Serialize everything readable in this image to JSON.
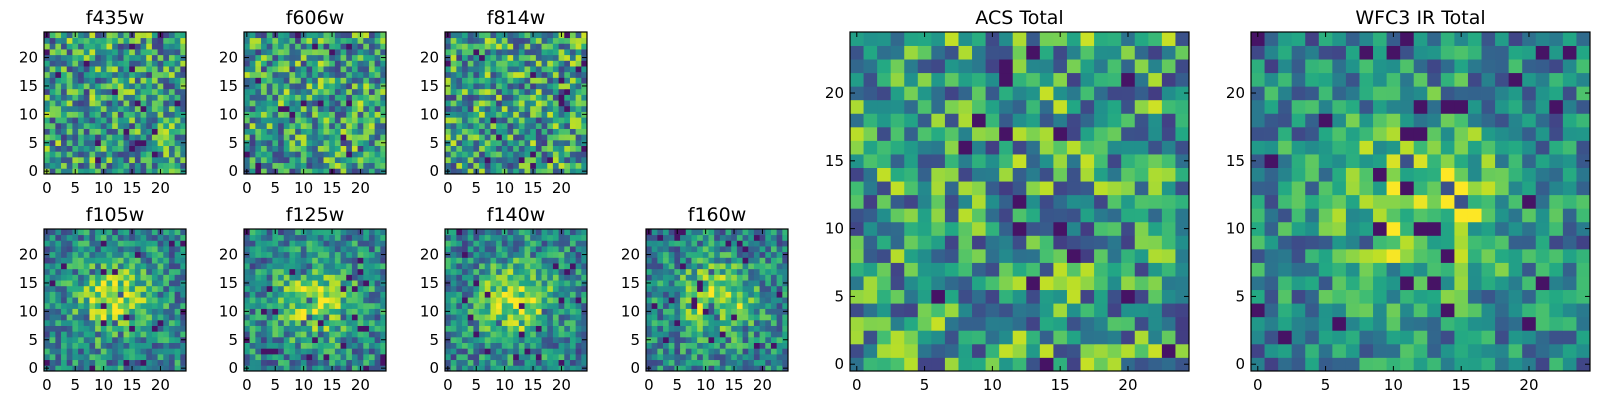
{
  "chart_data": [
    {
      "type": "heatmap",
      "title": "f435w",
      "size": "small",
      "cols": 25,
      "rows": 25,
      "xlim": [
        0,
        24
      ],
      "ylim": [
        0,
        24
      ],
      "xticks": [
        0,
        5,
        10,
        15,
        20
      ],
      "yticks": [
        0,
        5,
        10,
        15,
        20
      ],
      "xtick_labels": [
        "0",
        "5",
        "10",
        "15",
        "20"
      ],
      "ytick_labels": [
        "0",
        "5",
        "10",
        "15",
        "20"
      ],
      "pattern": "noise",
      "seed": 11
    },
    {
      "type": "heatmap",
      "title": "f606w",
      "size": "small",
      "cols": 25,
      "rows": 25,
      "xlim": [
        0,
        24
      ],
      "ylim": [
        0,
        24
      ],
      "xticks": [
        0,
        5,
        10,
        15,
        20
      ],
      "yticks": [
        0,
        5,
        10,
        15,
        20
      ],
      "xtick_labels": [
        "0",
        "5",
        "10",
        "15",
        "20"
      ],
      "ytick_labels": [
        "0",
        "5",
        "10",
        "15",
        "20"
      ],
      "pattern": "noise",
      "seed": 22
    },
    {
      "type": "heatmap",
      "title": "f814w",
      "size": "small",
      "cols": 25,
      "rows": 25,
      "xlim": [
        0,
        24
      ],
      "ylim": [
        0,
        24
      ],
      "xticks": [
        0,
        5,
        10,
        15,
        20
      ],
      "yticks": [
        0,
        5,
        10,
        15,
        20
      ],
      "xtick_labels": [
        "0",
        "5",
        "10",
        "15",
        "20"
      ],
      "ytick_labels": [
        "0",
        "5",
        "10",
        "15",
        "20"
      ],
      "pattern": "noise",
      "seed": 33
    },
    {
      "type": "heatmap",
      "title": "f105w",
      "size": "small",
      "cols": 25,
      "rows": 25,
      "xlim": [
        0,
        24
      ],
      "ylim": [
        0,
        24
      ],
      "xticks": [
        0,
        5,
        10,
        15,
        20
      ],
      "yticks": [
        0,
        5,
        10,
        15,
        20
      ],
      "xtick_labels": [
        "0",
        "5",
        "10",
        "15",
        "20"
      ],
      "ytick_labels": [
        "0",
        "5",
        "10",
        "15",
        "20"
      ],
      "pattern": "source",
      "seed": 44
    },
    {
      "type": "heatmap",
      "title": "f125w",
      "size": "small",
      "cols": 25,
      "rows": 25,
      "xlim": [
        0,
        24
      ],
      "ylim": [
        0,
        24
      ],
      "xticks": [
        0,
        5,
        10,
        15,
        20
      ],
      "yticks": [
        0,
        5,
        10,
        15,
        20
      ],
      "xtick_labels": [
        "0",
        "5",
        "10",
        "15",
        "20"
      ],
      "ytick_labels": [
        "0",
        "5",
        "10",
        "15",
        "20"
      ],
      "pattern": "source",
      "seed": 55
    },
    {
      "type": "heatmap",
      "title": "f140w",
      "size": "small",
      "cols": 25,
      "rows": 25,
      "xlim": [
        0,
        24
      ],
      "ylim": [
        0,
        24
      ],
      "xticks": [
        0,
        5,
        10,
        15,
        20
      ],
      "yticks": [
        0,
        5,
        10,
        15,
        20
      ],
      "xtick_labels": [
        "0",
        "5",
        "10",
        "15",
        "20"
      ],
      "ytick_labels": [
        "0",
        "5",
        "10",
        "15",
        "20"
      ],
      "pattern": "source",
      "seed": 66
    },
    {
      "type": "heatmap",
      "title": "f160w",
      "size": "small",
      "cols": 25,
      "rows": 25,
      "xlim": [
        0,
        24
      ],
      "ylim": [
        0,
        24
      ],
      "xticks": [
        0,
        5,
        10,
        15,
        20
      ],
      "yticks": [
        0,
        5,
        10,
        15,
        20
      ],
      "xtick_labels": [
        "0",
        "5",
        "10",
        "15",
        "20"
      ],
      "ytick_labels": [
        "0",
        "5",
        "10",
        "15",
        "20"
      ],
      "pattern": "source",
      "seed": 77
    },
    {
      "type": "heatmap",
      "title": "ACS Total",
      "size": "large",
      "cols": 25,
      "rows": 25,
      "xlim": [
        0,
        24
      ],
      "ylim": [
        0,
        24
      ],
      "xticks": [
        0,
        5,
        10,
        15,
        20
      ],
      "yticks": [
        0,
        5,
        10,
        15,
        20
      ],
      "xtick_labels": [
        "0",
        "5",
        "10",
        "15",
        "20"
      ],
      "ytick_labels": [
        "0",
        "5",
        "10",
        "15",
        "20"
      ],
      "pattern": "noise",
      "seed": 88
    },
    {
      "type": "heatmap",
      "title": "WFC3 IR Total",
      "size": "large",
      "cols": 25,
      "rows": 25,
      "xlim": [
        0,
        24
      ],
      "ylim": [
        0,
        24
      ],
      "xticks": [
        0,
        5,
        10,
        15,
        20
      ],
      "yticks": [
        0,
        5,
        10,
        15,
        20
      ],
      "xtick_labels": [
        "0",
        "5",
        "10",
        "15",
        "20"
      ],
      "ytick_labels": [
        "0",
        "5",
        "10",
        "15",
        "20"
      ],
      "pattern": "source",
      "seed": 99
    }
  ],
  "colormap": "viridis",
  "colors": {
    "low": "#440154",
    "mid": "#21908d",
    "high": "#fde725"
  }
}
